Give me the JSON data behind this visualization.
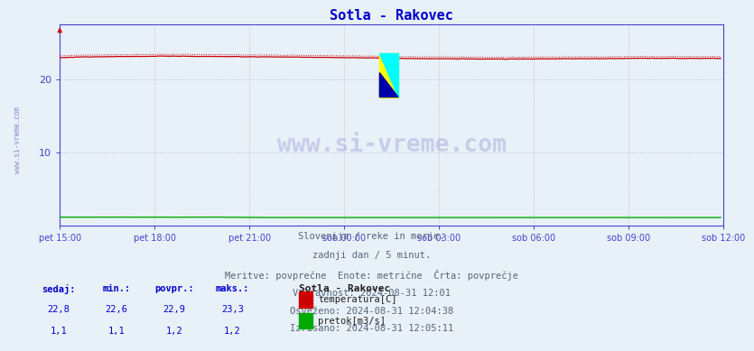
{
  "title": "Sotla - Rakovec",
  "title_color": "#0000cc",
  "title_fontsize": 11,
  "bg_color": "#e8f0f8",
  "plot_bg_color": "#e8f0f8",
  "xlim": [
    0,
    252
  ],
  "ylim": [
    0,
    27.5
  ],
  "yticks": [
    10,
    20
  ],
  "xtick_labels": [
    "pet 15:00",
    "pet 18:00",
    "pet 21:00",
    "sob 00:00",
    "sob 03:00",
    "sob 06:00",
    "sob 09:00",
    "sob 12:00"
  ],
  "xtick_positions": [
    0,
    36,
    72,
    108,
    144,
    180,
    216,
    252
  ],
  "temp_color": "#cc0000",
  "flow_color": "#00aa00",
  "grid_color_h": "#aaaacc",
  "grid_color_v": "#ccaaaa",
  "axis_color": "#4444cc",
  "tick_color": "#4444cc",
  "watermark_text": "www.si-vreme.com",
  "watermark_color": "#3333aa",
  "watermark_alpha": 0.18,
  "left_label": "www.si-vreme.com",
  "info_lines": [
    "Slovenija / reke in morje.",
    "zadnji dan / 5 minut.",
    "Meritve: povprečne  Enote: metrične  Črta: povprečje",
    "Veljavnost: 2024-08-31 12:01",
    "Osveženo: 2024-08-31 12:04:38",
    "Izrisano: 2024-08-31 12:05:11"
  ],
  "legend_title": "Sotla - Rakovec",
  "legend_entries": [
    {
      "label": "temperatura[C]",
      "color": "#cc0000"
    },
    {
      "label": "pretok[m3/s]",
      "color": "#00aa00"
    }
  ],
  "stats_headers": [
    "sedaj:",
    "min.:",
    "povpr.:",
    "maks.:"
  ],
  "stats_temp": [
    "22,8",
    "22,6",
    "22,9",
    "23,3"
  ],
  "stats_flow": [
    "1,1",
    "1,1",
    "1,2",
    "1,2"
  ],
  "stats_color": "#0000cc"
}
